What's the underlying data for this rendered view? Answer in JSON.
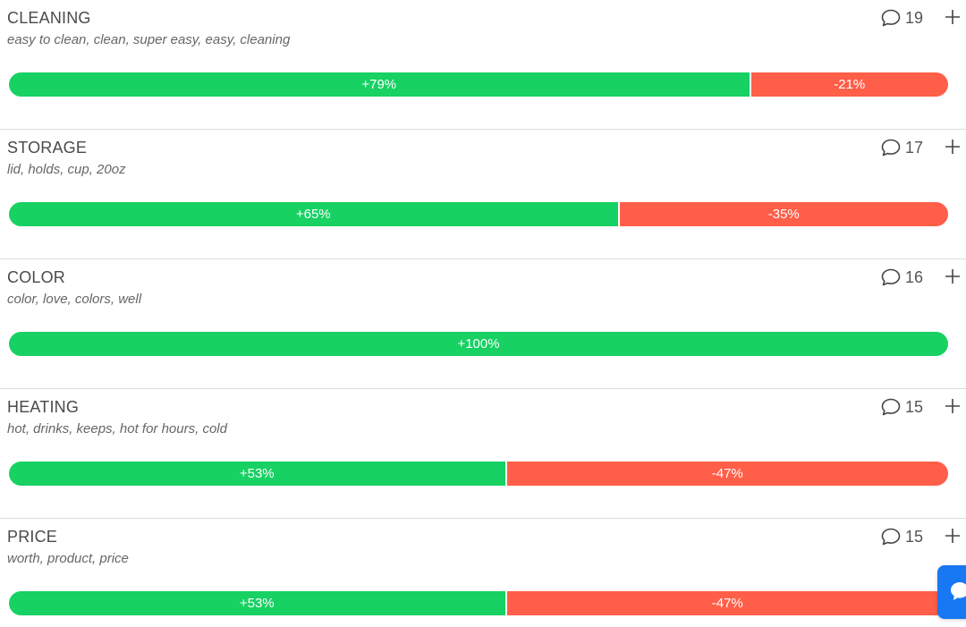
{
  "colors": {
    "positive": "#17d163",
    "negative": "#ff5e48",
    "chat_widget": "#1877f2"
  },
  "topics": [
    {
      "name": "CLEANING",
      "keywords": "easy to clean, clean, super easy, easy, cleaning",
      "mentions": "19",
      "positive_label": "+79%",
      "negative_label": "-21%",
      "positive_pct": 79,
      "negative_pct": 21,
      "mention_icon": "speech-bubble-icon",
      "expand_icon": "plus-icon"
    },
    {
      "name": "STORAGE",
      "keywords": "lid, holds, cup, 20oz",
      "mentions": "17",
      "positive_label": "+65%",
      "negative_label": "-35%",
      "positive_pct": 65,
      "negative_pct": 35,
      "mention_icon": "speech-bubble-icon",
      "expand_icon": "plus-icon"
    },
    {
      "name": "COLOR",
      "keywords": "color, love, colors, well",
      "mentions": "16",
      "positive_label": "+100%",
      "negative_label": "",
      "positive_pct": 100,
      "negative_pct": 0,
      "mention_icon": "speech-bubble-icon",
      "expand_icon": "plus-icon"
    },
    {
      "name": "HEATING",
      "keywords": "hot, drinks, keeps, hot for hours, cold",
      "mentions": "15",
      "positive_label": "+53%",
      "negative_label": "-47%",
      "positive_pct": 53,
      "negative_pct": 47,
      "mention_icon": "speech-bubble-icon",
      "expand_icon": "plus-icon"
    },
    {
      "name": "PRICE",
      "keywords": "worth, product, price",
      "mentions": "15",
      "positive_label": "+53%",
      "negative_label": "-47%",
      "positive_pct": 53,
      "negative_pct": 47,
      "mention_icon": "speech-bubble-icon",
      "expand_icon": "plus-icon"
    }
  ],
  "chat_widget": {
    "icon": "chat-bubble-icon"
  }
}
